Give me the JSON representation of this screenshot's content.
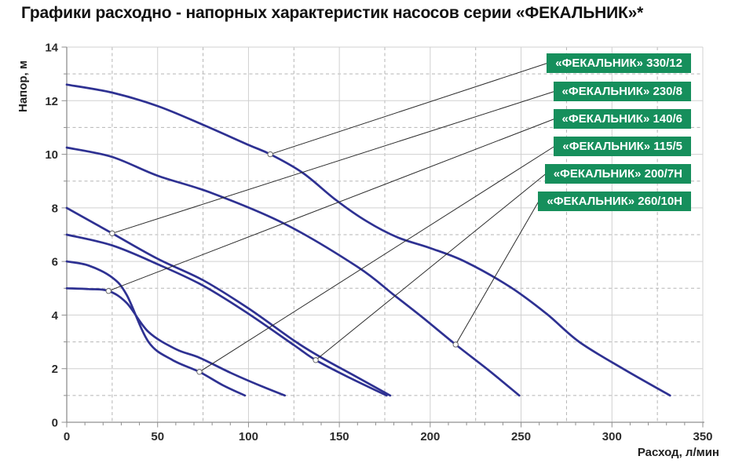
{
  "title": "Графики расходно - напорных характеристик насосов серии «ФЕКАЛЬНИК»*",
  "chart_data": {
    "type": "line",
    "title": "Графики расходно - напорных характеристик насосов серии «ФЕКАЛЬНИК»*",
    "xlabel": "Расход, л/мин",
    "ylabel": "Напор, м",
    "xlim": [
      0,
      350
    ],
    "ylim": [
      0,
      14
    ],
    "x_ticks": [
      0,
      50,
      100,
      150,
      200,
      250,
      300,
      350
    ],
    "y_ticks": [
      0,
      2,
      4,
      6,
      8,
      10,
      12,
      14
    ],
    "x_minor_grid": [
      25,
      75,
      125,
      175,
      225,
      275,
      325
    ],
    "y_minor_grid": [
      1,
      3,
      5,
      7,
      9,
      11,
      13
    ],
    "x_minor_tick_step": 10,
    "y_minor_tick_step": 1,
    "grid": true,
    "legend_position": "right-top-inside",
    "series": [
      {
        "name": "«ФЕКАЛЬНИК» 330/12",
        "label_anchor": [
          112,
          10.0
        ],
        "points": [
          [
            0,
            12.6
          ],
          [
            25,
            12.3
          ],
          [
            50,
            11.8
          ],
          [
            75,
            11.1
          ],
          [
            100,
            10.35
          ],
          [
            112,
            10.0
          ],
          [
            130,
            9.3
          ],
          [
            148,
            8.3
          ],
          [
            165,
            7.5
          ],
          [
            182,
            6.9
          ],
          [
            200,
            6.5
          ],
          [
            219,
            6.0
          ],
          [
            244,
            5.05
          ],
          [
            264,
            4.05
          ],
          [
            282,
            3.0
          ],
          [
            306,
            2.0
          ],
          [
            332,
            1.0
          ]
        ]
      },
      {
        "name": "«ФЕКАЛЬНИК» 230/8",
        "label_anchor": [
          25,
          7.05
        ],
        "points": [
          [
            0,
            8.0
          ],
          [
            25,
            7.05
          ],
          [
            50,
            6.1
          ],
          [
            75,
            5.3
          ],
          [
            100,
            4.25
          ],
          [
            125,
            3.05
          ],
          [
            140,
            2.42
          ],
          [
            158,
            1.75
          ],
          [
            178,
            1.0
          ]
        ]
      },
      {
        "name": "«ФЕКАЛЬНИК» 140/6",
        "label_anchor": [
          23,
          4.9
        ],
        "points": [
          [
            0,
            5.0
          ],
          [
            12,
            4.97
          ],
          [
            23,
            4.9
          ],
          [
            33,
            4.45
          ],
          [
            45,
            3.37
          ],
          [
            60,
            2.73
          ],
          [
            73,
            2.41
          ],
          [
            90,
            1.85
          ],
          [
            107,
            1.35
          ],
          [
            120,
            1.0
          ]
        ]
      },
      {
        "name": "«ФЕКАЛЬНИК» 115/5",
        "label_anchor": [
          73,
          1.88
        ],
        "points": [
          [
            0,
            6.0
          ],
          [
            12,
            5.85
          ],
          [
            25,
            5.4
          ],
          [
            33,
            4.75
          ],
          [
            45,
            3.0
          ],
          [
            58,
            2.33
          ],
          [
            73,
            1.88
          ],
          [
            86,
            1.38
          ],
          [
            98,
            1.0
          ]
        ]
      },
      {
        "name": "«ФЕКАЛЬНИК» 200/7Н",
        "label_anchor": [
          137,
          2.32
        ],
        "points": [
          [
            0,
            7.0
          ],
          [
            25,
            6.6
          ],
          [
            50,
            5.9
          ],
          [
            75,
            5.1
          ],
          [
            100,
            4.05
          ],
          [
            125,
            2.88
          ],
          [
            137,
            2.32
          ],
          [
            156,
            1.65
          ],
          [
            176,
            1.0
          ]
        ]
      },
      {
        "name": "«ФЕКАЛЬНИК» 260/10Н",
        "label_anchor": [
          214,
          2.9
        ],
        "points": [
          [
            0,
            10.25
          ],
          [
            25,
            9.9
          ],
          [
            50,
            9.2
          ],
          [
            80,
            8.55
          ],
          [
            120,
            7.4
          ],
          [
            160,
            5.8
          ],
          [
            180,
            4.75
          ],
          [
            196,
            3.9
          ],
          [
            214,
            2.9
          ],
          [
            232,
            1.95
          ],
          [
            249,
            1.0
          ]
        ]
      }
    ]
  },
  "colors": {
    "curve": "#2e3192",
    "badge_bg": "#168f5c",
    "badge_text": "#ffffff",
    "leader": "#2b2b2b",
    "anchor_fill": "#ffffff",
    "anchor_stroke": "#666666",
    "grid_major": "#d0d0d0",
    "grid_minor": "#b5b5b5",
    "axis": "#8f8f8f",
    "text": "#2b2b2b"
  }
}
